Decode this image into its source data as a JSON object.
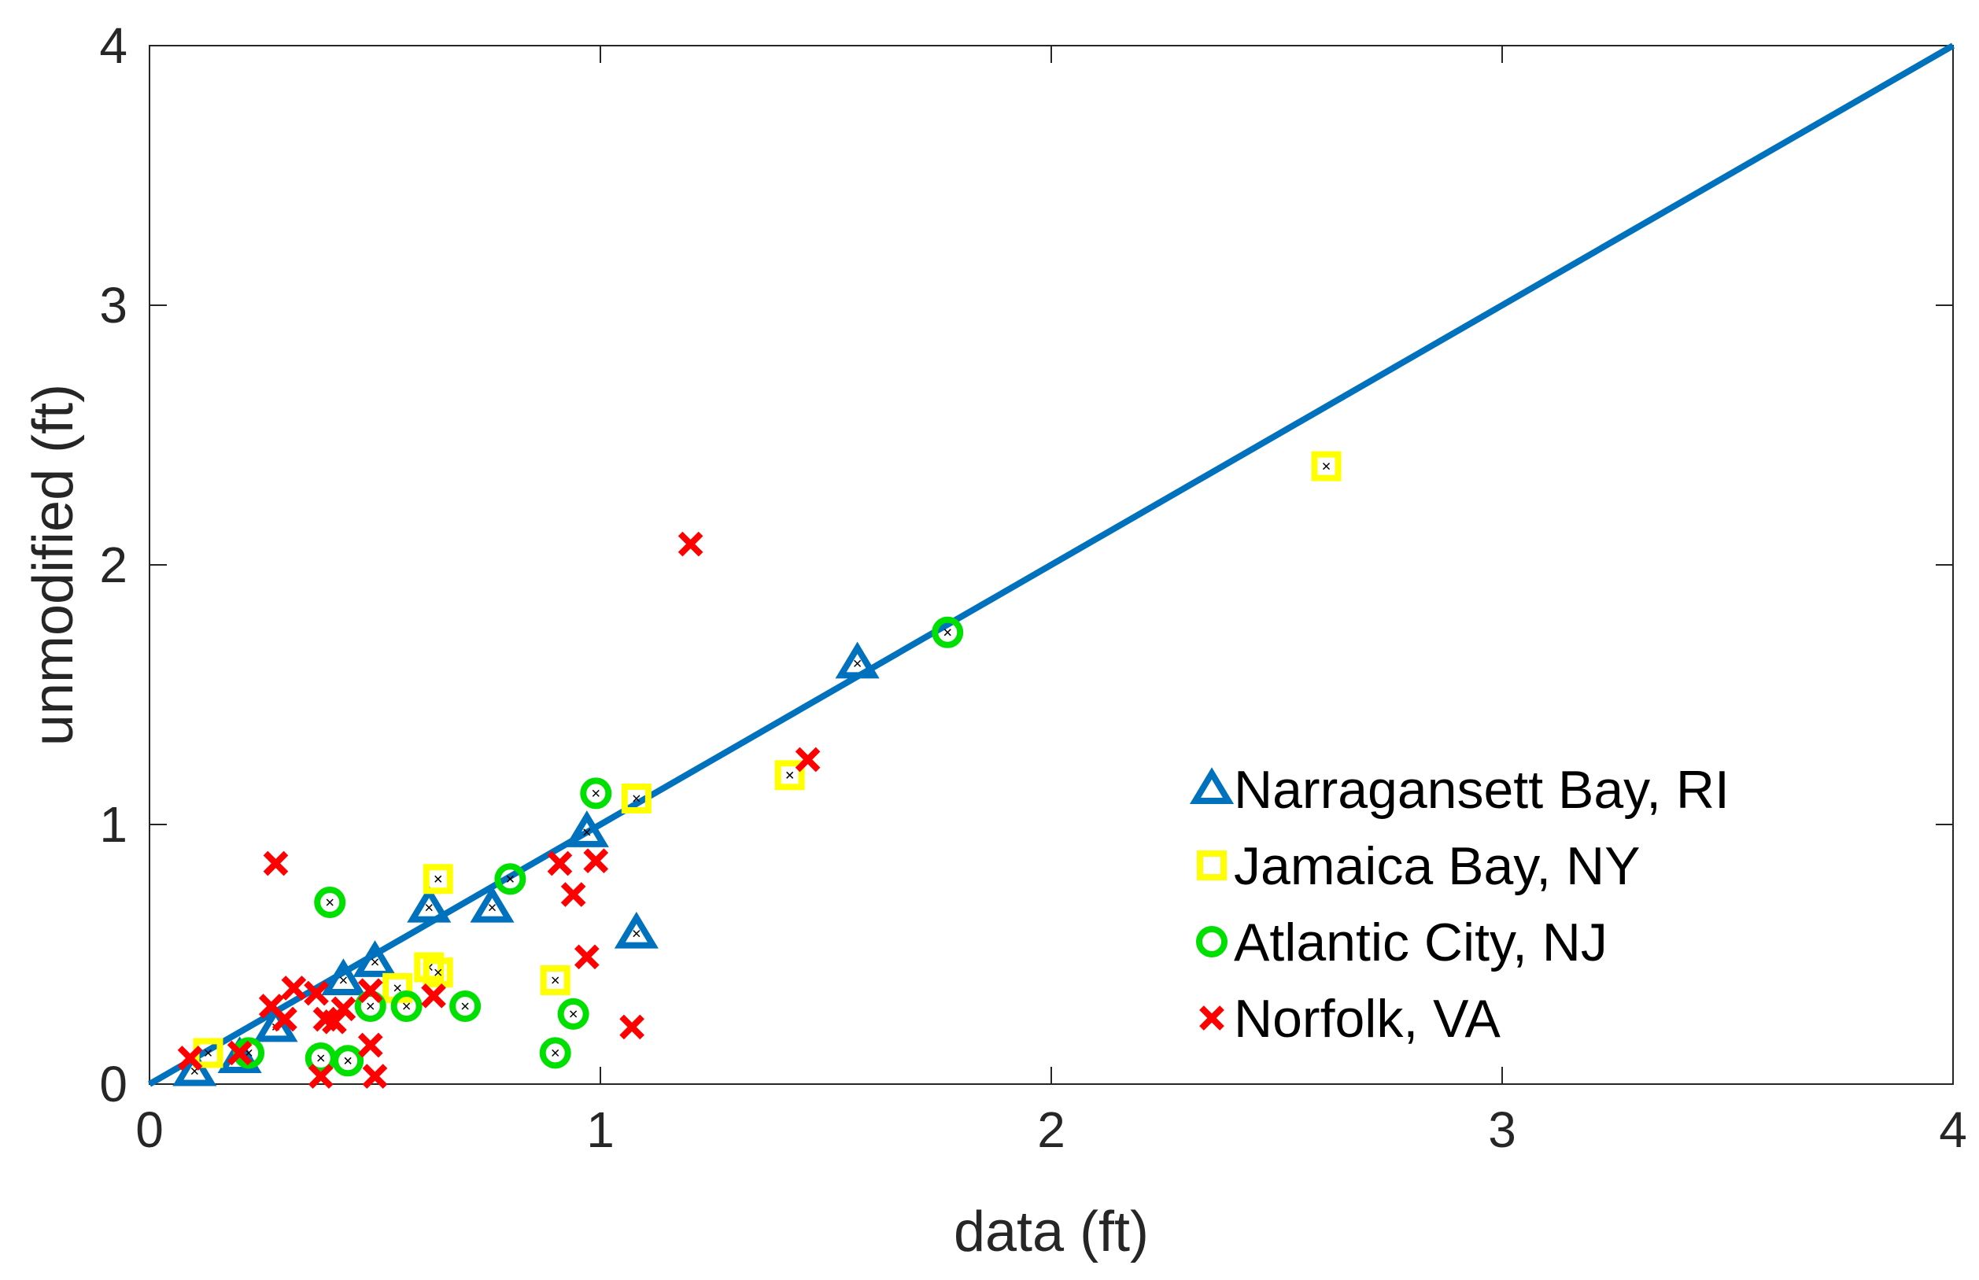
{
  "chart_data": {
    "type": "scatter",
    "title": "",
    "xlabel": "data (ft)",
    "ylabel": "unmodified (ft)",
    "xlim": [
      0,
      4
    ],
    "ylim": [
      0,
      4
    ],
    "xticks": [
      "0",
      "1",
      "2",
      "3",
      "4"
    ],
    "yticks": [
      "0",
      "1",
      "2",
      "3",
      "4"
    ],
    "grid": false,
    "legend_position": "lower-right",
    "reference_line": {
      "name": "1:1 line",
      "x": [
        0,
        4
      ],
      "y": [
        0,
        4
      ],
      "color": "#0072BD"
    },
    "series": [
      {
        "name": "Narragansett Bay, RI",
        "marker": "triangle",
        "color": "#0072BD",
        "points": [
          [
            0.1,
            0.05
          ],
          [
            0.2,
            0.1
          ],
          [
            0.28,
            0.22
          ],
          [
            0.43,
            0.4
          ],
          [
            0.5,
            0.47
          ],
          [
            0.62,
            0.68
          ],
          [
            0.76,
            0.68
          ],
          [
            0.97,
            0.97
          ],
          [
            1.08,
            0.58
          ],
          [
            1.57,
            1.62
          ]
        ]
      },
      {
        "name": "Jamaica Bay, NY",
        "marker": "square",
        "color": "#FFFF00",
        "points": [
          [
            0.13,
            0.12
          ],
          [
            0.55,
            0.37
          ],
          [
            0.62,
            0.45
          ],
          [
            0.64,
            0.43
          ],
          [
            0.64,
            0.79
          ],
          [
            0.9,
            0.4
          ],
          [
            1.08,
            1.1
          ],
          [
            1.42,
            1.19
          ],
          [
            2.61,
            2.38
          ]
        ]
      },
      {
        "name": "Atlantic City, NJ",
        "marker": "circle",
        "color": "#00E000",
        "points": [
          [
            0.22,
            0.12
          ],
          [
            0.38,
            0.1
          ],
          [
            0.4,
            0.7
          ],
          [
            0.44,
            0.09
          ],
          [
            0.49,
            0.3
          ],
          [
            0.57,
            0.3
          ],
          [
            0.7,
            0.3
          ],
          [
            0.8,
            0.79
          ],
          [
            0.9,
            0.12
          ],
          [
            0.94,
            0.27
          ],
          [
            0.99,
            1.12
          ],
          [
            1.77,
            1.74
          ]
        ]
      },
      {
        "name": "Norfolk, VA",
        "marker": "x",
        "color": "#FF0000",
        "points": [
          [
            0.09,
            0.1
          ],
          [
            0.2,
            0.12
          ],
          [
            0.27,
            0.3
          ],
          [
            0.28,
            0.85
          ],
          [
            0.3,
            0.25
          ],
          [
            0.32,
            0.37
          ],
          [
            0.37,
            0.35
          ],
          [
            0.38,
            0.03
          ],
          [
            0.39,
            0.25
          ],
          [
            0.41,
            0.24
          ],
          [
            0.43,
            0.29
          ],
          [
            0.49,
            0.15
          ],
          [
            0.49,
            0.36
          ],
          [
            0.5,
            0.03
          ],
          [
            0.63,
            0.34
          ],
          [
            0.91,
            0.85
          ],
          [
            0.94,
            0.73
          ],
          [
            0.97,
            0.49
          ],
          [
            0.99,
            0.86
          ],
          [
            1.07,
            0.22
          ],
          [
            1.2,
            2.08
          ],
          [
            1.46,
            1.25
          ]
        ]
      }
    ]
  }
}
